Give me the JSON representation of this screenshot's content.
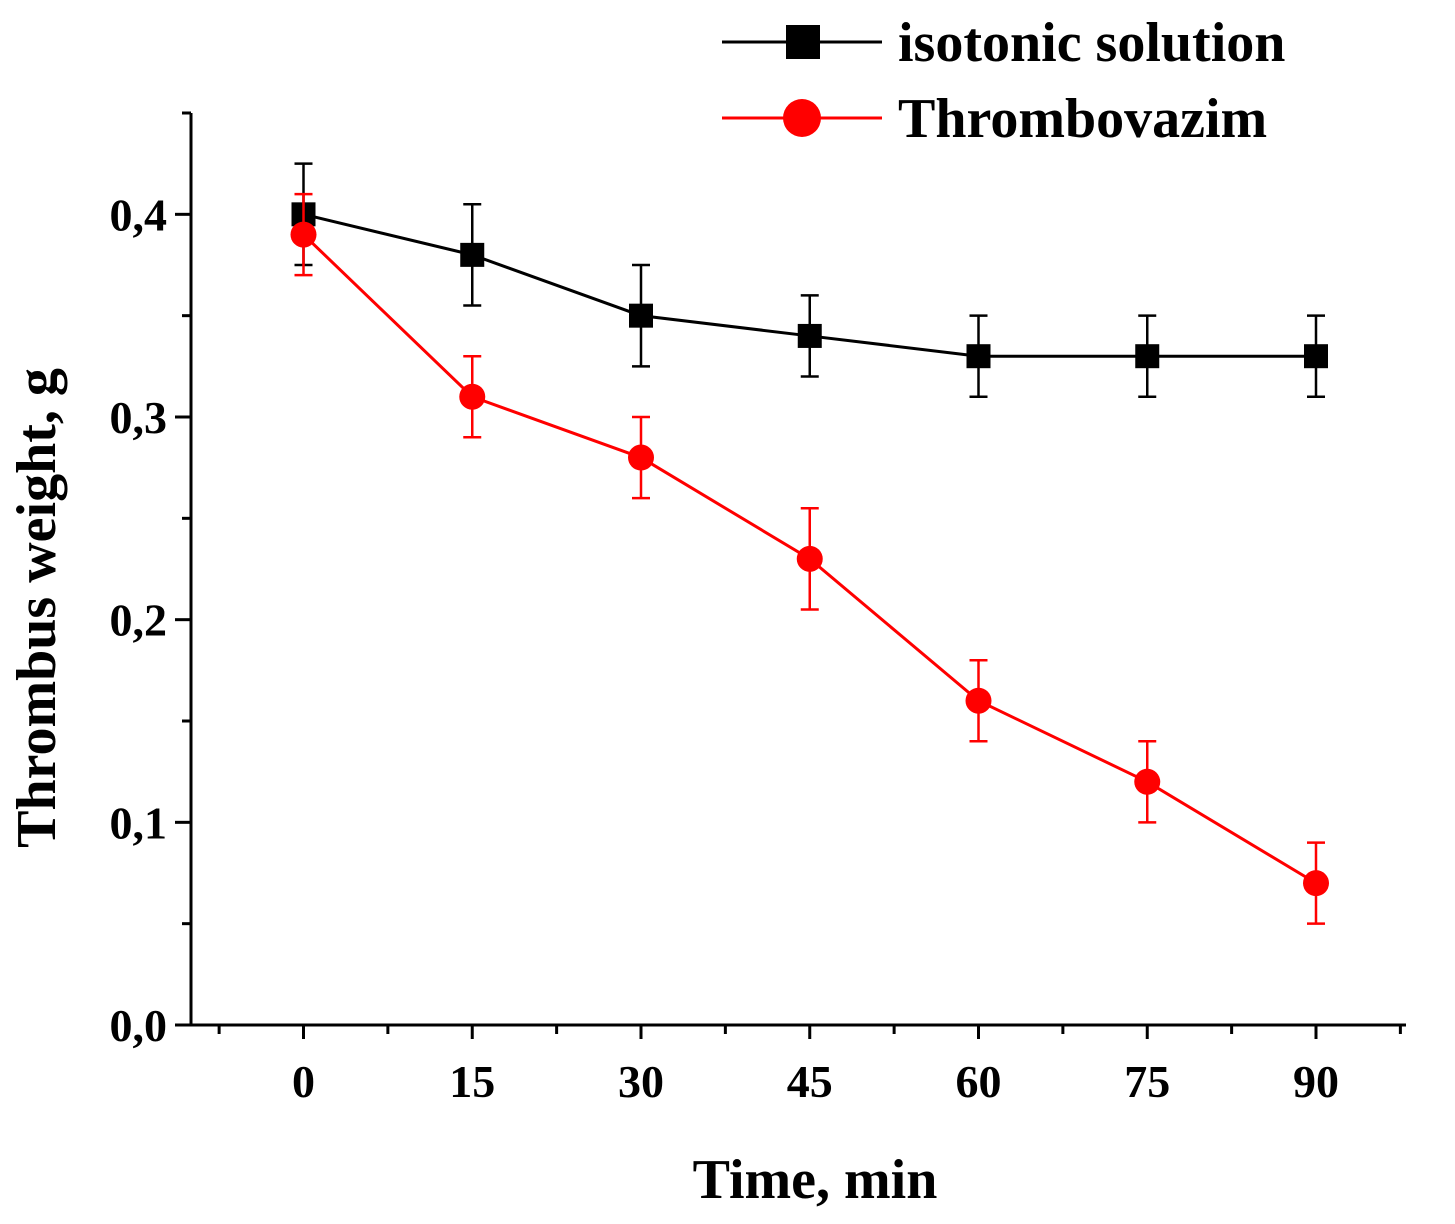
{
  "chart_data": {
    "type": "line",
    "title": "",
    "xlabel": "Time, min",
    "ylabel": "Thrombus weight, g",
    "x": [
      0,
      15,
      30,
      45,
      60,
      75,
      90
    ],
    "x_tick_labels": [
      "0",
      "15",
      "30",
      "45",
      "60",
      "75",
      "90"
    ],
    "y_tick_labels": [
      "0,0",
      "0,1",
      "0,2",
      "0,3",
      "0,4"
    ],
    "y_ticks": [
      0.0,
      0.1,
      0.2,
      0.3,
      0.4
    ],
    "xlim": [
      -10,
      98
    ],
    "ylim": [
      0.0,
      0.45
    ],
    "grid": false,
    "legend_position": "top-right",
    "series": [
      {
        "name": "isotonic solution",
        "marker": "square",
        "color": "#000000",
        "values": [
          0.4,
          0.38,
          0.35,
          0.34,
          0.33,
          0.33,
          0.33
        ],
        "errors": [
          0.025,
          0.025,
          0.025,
          0.02,
          0.02,
          0.02,
          0.02
        ]
      },
      {
        "name": "Thrombovazim",
        "marker": "circle",
        "color": "#ff0000",
        "values": [
          0.39,
          0.31,
          0.28,
          0.23,
          0.16,
          0.12,
          0.07
        ],
        "errors": [
          0.02,
          0.02,
          0.02,
          0.025,
          0.02,
          0.02,
          0.02
        ]
      }
    ]
  }
}
